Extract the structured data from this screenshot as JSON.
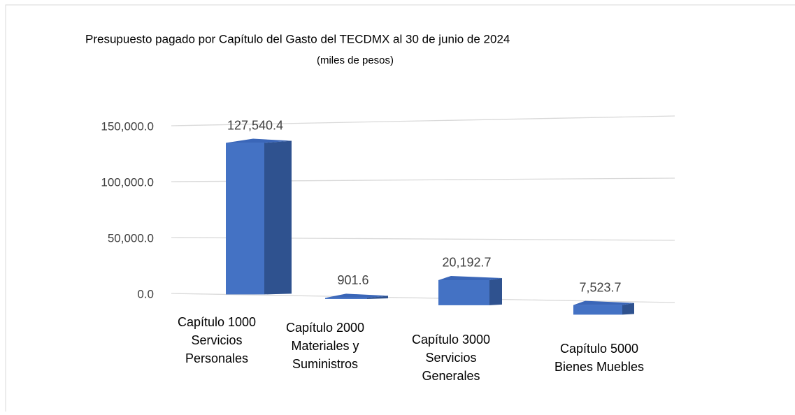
{
  "chart_data": {
    "type": "bar3d",
    "title": "Presupuesto  pagado por Capítulo del Gasto del TECDMX al 30 de junio de 2024",
    "subtitle": "(miles de pesos)",
    "categories": [
      [
        "Capítulo 1000",
        "Servicios",
        "Personales"
      ],
      [
        "Capítulo 2000",
        "Materiales y",
        "Suministros"
      ],
      [
        "Capítulo 3000",
        "Servicios",
        "Generales"
      ],
      [
        "Capítulo 5000",
        "Bienes Muebles"
      ]
    ],
    "values": [
      127540.4,
      901.6,
      20192.7,
      7523.7
    ],
    "value_labels": [
      "127,540.4",
      "901.6",
      "20,192.7",
      "7,523.7"
    ],
    "color": "#4472c4",
    "ylim": [
      0,
      150000
    ],
    "yticks": [
      {
        "value": 0,
        "label": "0.0"
      },
      {
        "value": 50000,
        "label": "50,000.0"
      },
      {
        "value": 100000,
        "label": "100,000.0"
      },
      {
        "value": 150000,
        "label": "150,000.0"
      }
    ],
    "grid": true
  }
}
